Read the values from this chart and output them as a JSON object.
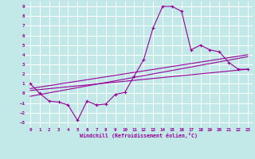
{
  "xlabel": "Windchill (Refroidissement éolien,°C)",
  "xlim": [
    -0.5,
    23.5
  ],
  "ylim": [
    -3.5,
    9.5
  ],
  "xticks": [
    0,
    1,
    2,
    3,
    4,
    5,
    6,
    7,
    8,
    9,
    10,
    11,
    12,
    13,
    14,
    15,
    16,
    17,
    18,
    19,
    20,
    21,
    22,
    23
  ],
  "yticks": [
    -3,
    -2,
    -1,
    0,
    1,
    2,
    3,
    4,
    5,
    6,
    7,
    8,
    9
  ],
  "bg_color": "#c2e8e8",
  "line_color": "#990099",
  "grid_color": "#ffffff",
  "line1_x": [
    0,
    1,
    2,
    3,
    4,
    5,
    6,
    7,
    8,
    9,
    10,
    11,
    12,
    13,
    14,
    15,
    16,
    17,
    18,
    19,
    20,
    21,
    22,
    23
  ],
  "line1_y": [
    1.0,
    0.0,
    -0.8,
    -0.9,
    -1.2,
    -2.8,
    -0.8,
    -1.2,
    -1.1,
    -0.1,
    0.1,
    1.8,
    3.5,
    6.8,
    9.0,
    9.0,
    8.5,
    4.5,
    5.0,
    4.5,
    4.3,
    3.2,
    2.5,
    2.5
  ],
  "line2_x": [
    0,
    23
  ],
  "line2_y": [
    0.3,
    2.5
  ],
  "line3_x": [
    0,
    23
  ],
  "line3_y": [
    0.5,
    4.0
  ],
  "line4_x": [
    0,
    23
  ],
  "line4_y": [
    -0.3,
    3.8
  ]
}
